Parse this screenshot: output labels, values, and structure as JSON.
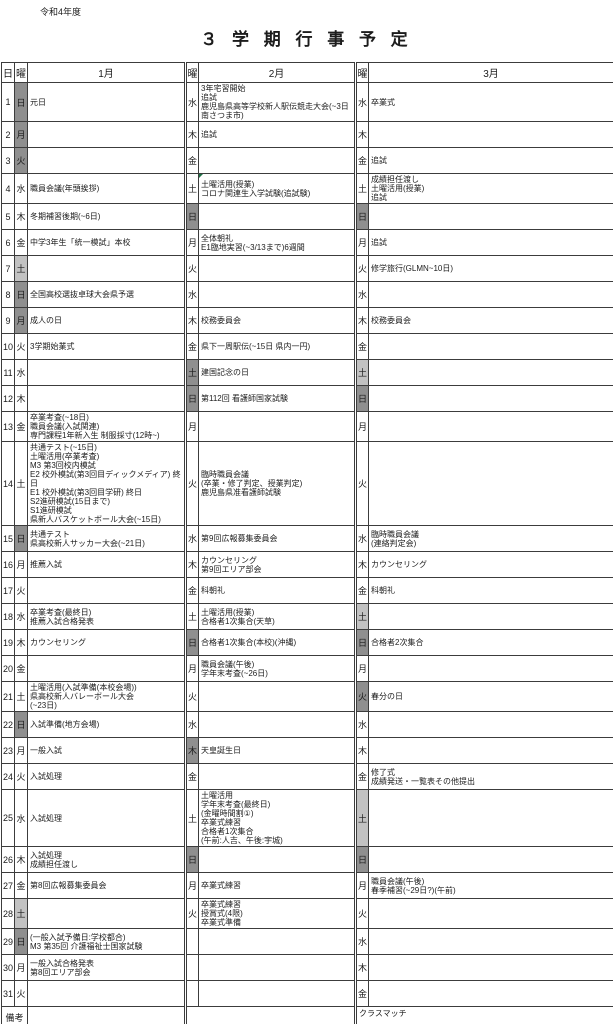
{
  "meta": {
    "fiscal_year": "令和4年度",
    "title": "３ 学 期 行 事 予 定"
  },
  "colors": {
    "holiday_shade": "#8f8f8f",
    "saturday_shade": "#c2c2c2",
    "marker_green": "#1e7145",
    "grid_line": "#3c3c3c"
  },
  "header": {
    "day": "日",
    "weekday": "曜",
    "months": [
      "1月",
      "2月",
      "3月"
    ]
  },
  "remarks": {
    "label": "備考",
    "jan": "",
    "feb": "",
    "mar": "クラスマッチ"
  },
  "rows": [
    {
      "day": "1",
      "jan": {
        "w": "日",
        "shade": "dark",
        "lines": [
          "元日"
        ]
      },
      "feb": {
        "w": "水",
        "shade": "",
        "lines": [
          "3年宅習開始",
          "追試",
          "鹿児島県高等学校新人駅伝競走大会(~3日 南さつま市)"
        ]
      },
      "mar": {
        "w": "水",
        "shade": "",
        "lines": [
          "卒業式"
        ]
      }
    },
    {
      "day": "2",
      "jan": {
        "w": "月",
        "shade": "dark",
        "lines": []
      },
      "feb": {
        "w": "木",
        "shade": "",
        "lines": [
          "追試"
        ]
      },
      "mar": {
        "w": "木",
        "shade": "",
        "lines": []
      }
    },
    {
      "day": "3",
      "jan": {
        "w": "火",
        "shade": "dark",
        "lines": []
      },
      "feb": {
        "w": "金",
        "shade": "",
        "lines": []
      },
      "mar": {
        "w": "金",
        "shade": "",
        "lines": [
          "追試"
        ]
      }
    },
    {
      "day": "4",
      "jan": {
        "w": "水",
        "shade": "",
        "lines": [
          "職員会議(年頭挨拶)"
        ]
      },
      "feb": {
        "w": "土",
        "shade": "",
        "marker": true,
        "lines": [
          "土曜活用(授業)",
          "コロナ関連生入学試験(追試験)"
        ]
      },
      "mar": {
        "w": "土",
        "shade": "",
        "lines": [
          "成績担任渡し",
          "土曜活用(授業)",
          "追試"
        ]
      }
    },
    {
      "day": "5",
      "jan": {
        "w": "木",
        "shade": "",
        "lines": [
          "冬期補習後期(~6日)"
        ]
      },
      "feb": {
        "w": "日",
        "shade": "dark",
        "lines": []
      },
      "mar": {
        "w": "日",
        "shade": "dark",
        "lines": []
      }
    },
    {
      "day": "6",
      "jan": {
        "w": "金",
        "shade": "",
        "lines": [
          "中学3年生「統一模試」本校"
        ]
      },
      "feb": {
        "w": "月",
        "shade": "",
        "lines": [
          "全体朝礼",
          "E1臨地実習(~3/13まで)6週間"
        ]
      },
      "mar": {
        "w": "月",
        "shade": "",
        "lines": [
          "追試"
        ]
      }
    },
    {
      "day": "7",
      "jan": {
        "w": "土",
        "shade": "light",
        "lines": []
      },
      "feb": {
        "w": "火",
        "shade": "",
        "lines": []
      },
      "mar": {
        "w": "火",
        "shade": "",
        "lines": [
          "修学旅行(GLMN~10日)"
        ]
      }
    },
    {
      "day": "8",
      "jan": {
        "w": "日",
        "shade": "dark",
        "lines": [
          "全国高校選抜卓球大会県予選"
        ]
      },
      "feb": {
        "w": "水",
        "shade": "",
        "lines": []
      },
      "mar": {
        "w": "水",
        "shade": "",
        "lines": []
      }
    },
    {
      "day": "9",
      "jan": {
        "w": "月",
        "shade": "dark",
        "lines": [
          "成人の日"
        ]
      },
      "feb": {
        "w": "木",
        "shade": "",
        "lines": [
          "校務委員会"
        ]
      },
      "mar": {
        "w": "木",
        "shade": "",
        "lines": [
          "校務委員会"
        ]
      }
    },
    {
      "day": "10",
      "jan": {
        "w": "火",
        "shade": "",
        "lines": [
          "3学期始業式"
        ]
      },
      "feb": {
        "w": "金",
        "shade": "",
        "lines": [
          "県下一周駅伝(~15日 県内一円)"
        ]
      },
      "mar": {
        "w": "金",
        "shade": "",
        "lines": []
      }
    },
    {
      "day": "11",
      "jan": {
        "w": "水",
        "shade": "",
        "lines": []
      },
      "feb": {
        "w": "土",
        "shade": "dark",
        "lines": [
          "建国記念の日"
        ]
      },
      "mar": {
        "w": "土",
        "shade": "light",
        "lines": []
      }
    },
    {
      "day": "12",
      "jan": {
        "w": "木",
        "shade": "",
        "lines": []
      },
      "feb": {
        "w": "日",
        "shade": "dark",
        "lines": [
          "第112回 看護師国家試験"
        ]
      },
      "mar": {
        "w": "日",
        "shade": "dark",
        "lines": []
      }
    },
    {
      "day": "13",
      "jan": {
        "w": "金",
        "shade": "",
        "lines": [
          "卒業考査(~18日)",
          "職員会議(入試関連)",
          "専門課程1年新入生 制服採寸(12時~)"
        ]
      },
      "feb": {
        "w": "月",
        "shade": "",
        "lines": []
      },
      "mar": {
        "w": "月",
        "shade": "",
        "lines": []
      }
    },
    {
      "day": "14",
      "jan": {
        "w": "土",
        "shade": "",
        "lines": [
          "共通テスト(~15日)",
          "土曜活用(卒業考査)",
          "M3 第3回校内模試",
          "E2 校外模試(第3回目ディックメディア) 終日",
          "E1 校外模試(第3回目学研) 終日",
          "S2進研模試(15日まで)",
          "S1進研模試",
          "県新人バスケットボール大会(~15日)"
        ]
      },
      "feb": {
        "w": "火",
        "shade": "",
        "lines": [
          "臨時職員会議",
          "(卒業・修了判定、授業判定)",
          "鹿児島県准看護師試験"
        ]
      },
      "mar": {
        "w": "火",
        "shade": "",
        "lines": []
      }
    },
    {
      "day": "15",
      "jan": {
        "w": "日",
        "shade": "dark",
        "lines": [
          "共通テスト",
          "県高校新人サッカー大会(~21日)"
        ]
      },
      "feb": {
        "w": "水",
        "shade": "",
        "lines": [
          "第9回広報募集委員会"
        ]
      },
      "mar": {
        "w": "水",
        "shade": "",
        "lines": [
          "臨時職員会議",
          "(連絡判定会)"
        ]
      }
    },
    {
      "day": "16",
      "jan": {
        "w": "月",
        "shade": "",
        "lines": [
          "推薦入試"
        ]
      },
      "feb": {
        "w": "木",
        "shade": "",
        "lines": [
          "カウンセリング",
          "第9回エリア部会"
        ]
      },
      "mar": {
        "w": "木",
        "shade": "",
        "lines": [
          "カウンセリング"
        ]
      }
    },
    {
      "day": "17",
      "jan": {
        "w": "火",
        "shade": "",
        "lines": []
      },
      "feb": {
        "w": "金",
        "shade": "",
        "lines": [
          "科朝礼"
        ]
      },
      "mar": {
        "w": "金",
        "shade": "",
        "lines": [
          "科朝礼"
        ]
      }
    },
    {
      "day": "18",
      "jan": {
        "w": "水",
        "shade": "",
        "lines": [
          "卒業考査(最終日)",
          "推薦入試合格発表"
        ]
      },
      "feb": {
        "w": "土",
        "shade": "",
        "lines": [
          "土曜活用(授業)",
          "合格者1次集合(天草)"
        ]
      },
      "mar": {
        "w": "土",
        "shade": "light",
        "lines": []
      }
    },
    {
      "day": "19",
      "jan": {
        "w": "木",
        "shade": "",
        "lines": [
          "カウンセリング"
        ]
      },
      "feb": {
        "w": "日",
        "shade": "dark",
        "lines": [
          "合格者1次集合(本校)(沖縄)"
        ]
      },
      "mar": {
        "w": "日",
        "shade": "dark",
        "lines": [
          "合格者2次集合"
        ]
      }
    },
    {
      "day": "20",
      "jan": {
        "w": "金",
        "shade": "",
        "lines": []
      },
      "feb": {
        "w": "月",
        "shade": "",
        "lines": [
          "職員会議(午後)",
          "学年末考査(~26日)"
        ]
      },
      "mar": {
        "w": "月",
        "shade": "",
        "lines": []
      }
    },
    {
      "day": "21",
      "jan": {
        "w": "土",
        "shade": "",
        "lines": [
          "土曜活用(入試準備(本校会場))",
          "県高校新人バレーボール大会",
          "(~23日)"
        ]
      },
      "feb": {
        "w": "火",
        "shade": "",
        "lines": []
      },
      "mar": {
        "w": "火",
        "shade": "dark",
        "lines": [
          "春分の日"
        ]
      }
    },
    {
      "day": "22",
      "jan": {
        "w": "日",
        "shade": "dark",
        "lines": [
          "入試準備(地方会場)"
        ]
      },
      "feb": {
        "w": "水",
        "shade": "",
        "lines": []
      },
      "mar": {
        "w": "水",
        "shade": "",
        "lines": []
      }
    },
    {
      "day": "23",
      "jan": {
        "w": "月",
        "shade": "",
        "lines": [
          "一般入試"
        ]
      },
      "feb": {
        "w": "木",
        "shade": "dark",
        "lines": [
          "天皇誕生日"
        ]
      },
      "mar": {
        "w": "木",
        "shade": "",
        "lines": []
      }
    },
    {
      "day": "24",
      "jan": {
        "w": "火",
        "shade": "",
        "lines": [
          "入試処理"
        ]
      },
      "feb": {
        "w": "金",
        "shade": "",
        "lines": []
      },
      "mar": {
        "w": "金",
        "shade": "",
        "lines": [
          "修了式",
          "成績発送・一覧表その他提出"
        ]
      }
    },
    {
      "day": "25",
      "jan": {
        "w": "水",
        "shade": "",
        "lines": [
          "入試処理"
        ]
      },
      "feb": {
        "w": "土",
        "shade": "",
        "lines": [
          "土曜活用",
          "学年末考査(最終日)",
          "(金曜時間割①)",
          "卒業式練習",
          "合格者1次集合",
          "(午前:人吉、午後:宇城)"
        ]
      },
      "mar": {
        "w": "土",
        "shade": "light",
        "lines": []
      }
    },
    {
      "day": "26",
      "jan": {
        "w": "木",
        "shade": "",
        "lines": [
          "入試処理",
          "成績担任渡し"
        ]
      },
      "feb": {
        "w": "日",
        "shade": "dark",
        "lines": []
      },
      "mar": {
        "w": "日",
        "shade": "dark",
        "lines": []
      }
    },
    {
      "day": "27",
      "jan": {
        "w": "金",
        "shade": "",
        "lines": [
          "第8回広報募集委員会"
        ]
      },
      "feb": {
        "w": "月",
        "shade": "",
        "lines": [
          "卒業式練習"
        ]
      },
      "mar": {
        "w": "月",
        "shade": "",
        "lines": [
          "職員会議(午後)",
          "春季補習(~29日?)(午前)"
        ]
      }
    },
    {
      "day": "28",
      "jan": {
        "w": "土",
        "shade": "light",
        "lines": []
      },
      "feb": {
        "w": "火",
        "shade": "",
        "lines": [
          "卒業式練習",
          "授賞式(4限)",
          "卒業式準備"
        ]
      },
      "mar": {
        "w": "火",
        "shade": "",
        "lines": []
      }
    },
    {
      "day": "29",
      "jan": {
        "w": "日",
        "shade": "dark",
        "lines": [
          "(一般入試予備日:学校都合)",
          "M3 第35回 介護福祉士国家試験"
        ]
      },
      "feb": {
        "w": "",
        "shade": "",
        "lines": []
      },
      "mar": {
        "w": "水",
        "shade": "",
        "lines": []
      }
    },
    {
      "day": "30",
      "jan": {
        "w": "月",
        "shade": "",
        "lines": [
          "一般入試合格発表",
          "第8回エリア部会"
        ]
      },
      "feb": {
        "w": "",
        "shade": "",
        "lines": []
      },
      "mar": {
        "w": "木",
        "shade": "",
        "lines": []
      }
    },
    {
      "day": "31",
      "jan": {
        "w": "火",
        "shade": "",
        "lines": []
      },
      "feb": {
        "w": "",
        "shade": "",
        "lines": []
      },
      "mar": {
        "w": "金",
        "shade": "",
        "lines": []
      }
    }
  ]
}
